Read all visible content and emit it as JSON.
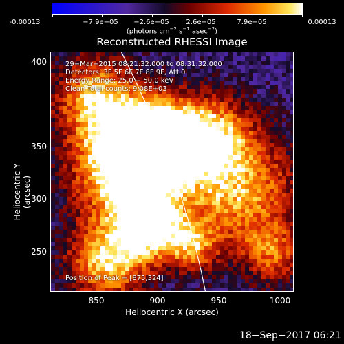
{
  "colorbar": {
    "ticks": [
      "-0.00013",
      "−7.9e−05",
      "−2.6e−05",
      "2.6e−05",
      "7.9e−05",
      "0.00013"
    ],
    "units_prefix": "(photons cm",
    "units_exp1": "−2",
    "units_mid": " s",
    "units_exp2": "−1",
    "units_mid2": " asec",
    "units_exp3": "−2",
    "units_suffix": ")"
  },
  "title": "Reconstructed RHESSI Image",
  "annotations": {
    "time": "29−Mar−2015 08:21:32.000 to 08:31:32.000",
    "detectors": "Detectors: 3F 5F 6F 7F 8F 9F, Att 0",
    "energy": "Energy Range: 25.0 − 50.0 keV",
    "clean": "Clean     Total counts: 9.08E+03",
    "peak": "Position of Peak = [875,324]"
  },
  "axes": {
    "xlabel": "Heliocentric X (arcsec)",
    "ylabel": "Heliocentric Y (arcsec)",
    "xticks": [
      "850",
      "900",
      "950",
      "1000"
    ],
    "yticks": [
      "400",
      "350",
      "300",
      "250"
    ]
  },
  "footer": "18−Sep−2017 06:21",
  "colors": {
    "background": "#000000",
    "text": "#ffffff"
  }
}
